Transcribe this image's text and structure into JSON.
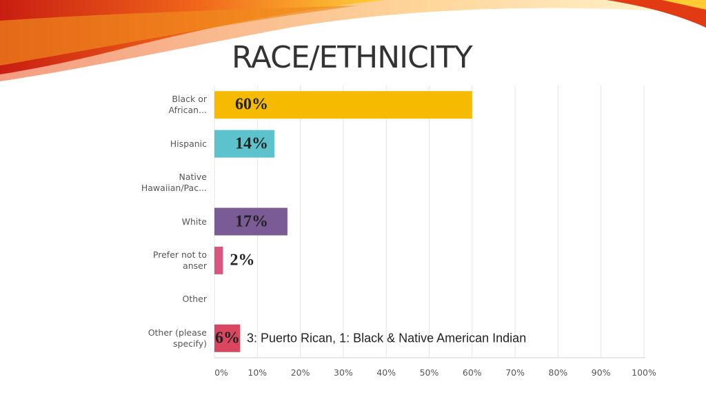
{
  "chart_data": {
    "type": "bar",
    "orientation": "horizontal",
    "title": "RACE/ETHNICITY",
    "categories": [
      "Black or\nAfrican...",
      "Hispanic",
      "Native\nHawaiian/Pac...",
      "White",
      "Prefer not to\nanser",
      "Other",
      "Other (please\nspecify)"
    ],
    "values": [
      60,
      14,
      0,
      17,
      2,
      0,
      6
    ],
    "value_labels": [
      "60%",
      "14%",
      null,
      "17%",
      "2%",
      null,
      "6%"
    ],
    "colors": [
      "#f6bb00",
      "#5cc3cc",
      null,
      "#7a5b95",
      "#d9567f",
      null,
      "#d8475f"
    ],
    "annotation": "3: Puerto Rican, 1: Black & Native American Indian",
    "xlim": [
      0,
      100
    ],
    "xticks": [
      {
        "value": 0,
        "label": "0%"
      },
      {
        "value": 10,
        "label": "10%"
      },
      {
        "value": 20,
        "label": "20%"
      },
      {
        "value": 30,
        "label": "30%"
      },
      {
        "value": 40,
        "label": "40%"
      },
      {
        "value": 50,
        "label": "50%"
      },
      {
        "value": 60,
        "label": "60%"
      },
      {
        "value": 70,
        "label": "70%"
      },
      {
        "value": 80,
        "label": "80%"
      },
      {
        "value": 90,
        "label": "90%"
      },
      {
        "value": 100,
        "label": "100%"
      }
    ],
    "grid": true
  }
}
